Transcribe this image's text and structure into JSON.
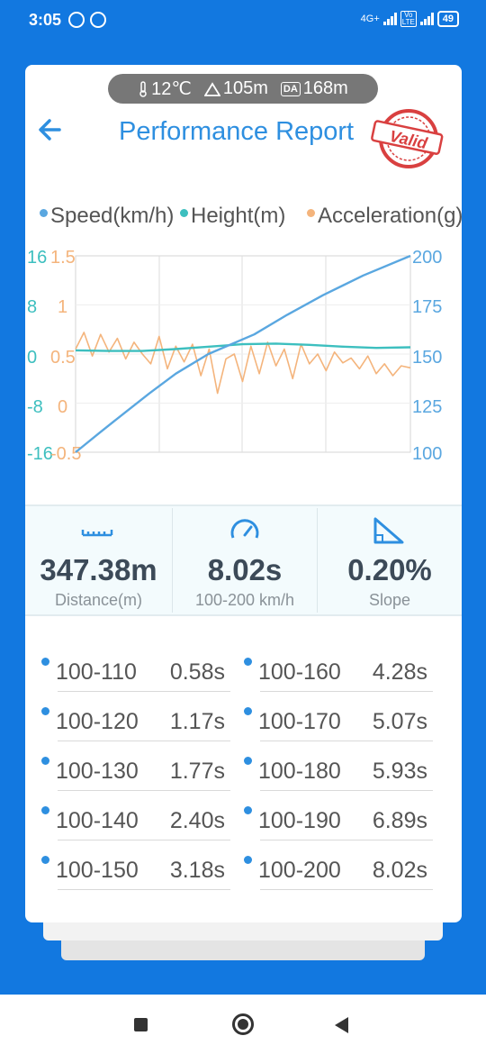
{
  "status_bar": {
    "time": "3:05",
    "network": "4G+",
    "volte": "Vo LTE",
    "battery": "49"
  },
  "header": {
    "temperature": "12℃",
    "altitude": "105m",
    "da_badge": "DA",
    "density_altitude": "168m",
    "title": "Performance Report",
    "stamp_text": "Valid"
  },
  "legend": [
    {
      "label": "Speed(km/h)",
      "color": "#5aa7e0"
    },
    {
      "label": "Height(m)",
      "color": "#3dbfbf"
    },
    {
      "label": "Acceleration(g)",
      "color": "#f4b47c"
    }
  ],
  "chart_data": {
    "type": "line",
    "axes": {
      "height_ticks": [
        "16",
        "8",
        "0",
        "-8",
        "-16"
      ],
      "height_ylim": [
        -16,
        16
      ],
      "accel_ticks": [
        "1.5",
        "1",
        "0.5",
        "0",
        "-0.5"
      ],
      "accel_ylim": [
        -0.5,
        1.5
      ],
      "speed_ticks": [
        "200",
        "175",
        "150",
        "125",
        "100"
      ],
      "speed_ylim": [
        100,
        200
      ]
    },
    "grid": true,
    "series": [
      {
        "name": "Speed(km/h)",
        "color": "#5aa7e0",
        "axis": "right",
        "x": [
          0,
          0.58,
          1.17,
          1.77,
          2.4,
          3.18,
          4.28,
          5.07,
          5.93,
          6.89,
          8.02
        ],
        "values": [
          100,
          110,
          120,
          130,
          140,
          150,
          160,
          170,
          180,
          190,
          200
        ]
      },
      {
        "name": "Height(m)",
        "color": "#3dbfbf",
        "axis": "left",
        "x": [
          0,
          0.8,
          1.6,
          2.4,
          3.2,
          4.0,
          4.8,
          5.6,
          6.4,
          7.2,
          8.02
        ],
        "values": [
          0.6,
          0.5,
          0.5,
          0.8,
          1.2,
          1.6,
          1.7,
          1.5,
          1.2,
          1.0,
          1.1
        ]
      },
      {
        "name": "Acceleration(g)",
        "color": "#f4b47c",
        "axis": "left2",
        "x": [
          0,
          0.2,
          0.4,
          0.6,
          0.8,
          1.0,
          1.2,
          1.4,
          1.6,
          1.8,
          2.0,
          2.2,
          2.4,
          2.6,
          2.8,
          3.0,
          3.2,
          3.4,
          3.6,
          3.8,
          4.0,
          4.2,
          4.4,
          4.6,
          4.8,
          5.0,
          5.2,
          5.4,
          5.6,
          5.8,
          6.0,
          6.2,
          6.4,
          6.6,
          6.8,
          7.0,
          7.2,
          7.4,
          7.6,
          7.8,
          8.02
        ],
        "values": [
          0.55,
          0.72,
          0.48,
          0.7,
          0.52,
          0.66,
          0.45,
          0.62,
          0.5,
          0.4,
          0.68,
          0.35,
          0.58,
          0.42,
          0.6,
          0.28,
          0.55,
          0.1,
          0.45,
          0.5,
          0.22,
          0.58,
          0.3,
          0.62,
          0.38,
          0.55,
          0.25,
          0.6,
          0.4,
          0.5,
          0.33,
          0.52,
          0.41,
          0.46,
          0.35,
          0.48,
          0.3,
          0.4,
          0.28,
          0.38,
          0.36
        ]
      }
    ]
  },
  "stats": [
    {
      "value": "347.38m",
      "label": "Distance(m)",
      "icon": "ruler-icon"
    },
    {
      "value": "8.02s",
      "label": "100-200 km/h",
      "icon": "speedometer-icon"
    },
    {
      "value": "0.20%",
      "label": "Slope",
      "icon": "slope-icon"
    }
  ],
  "splits": [
    {
      "range": "100-110",
      "time": "0.58s"
    },
    {
      "range": "100-120",
      "time": "1.17s"
    },
    {
      "range": "100-130",
      "time": "1.77s"
    },
    {
      "range": "100-140",
      "time": "2.40s"
    },
    {
      "range": "100-150",
      "time": "3.18s"
    },
    {
      "range": "100-160",
      "time": "4.28s"
    },
    {
      "range": "100-170",
      "time": "5.07s"
    },
    {
      "range": "100-180",
      "time": "5.93s"
    },
    {
      "range": "100-190",
      "time": "6.89s"
    },
    {
      "range": "100-200",
      "time": "8.02s"
    }
  ]
}
